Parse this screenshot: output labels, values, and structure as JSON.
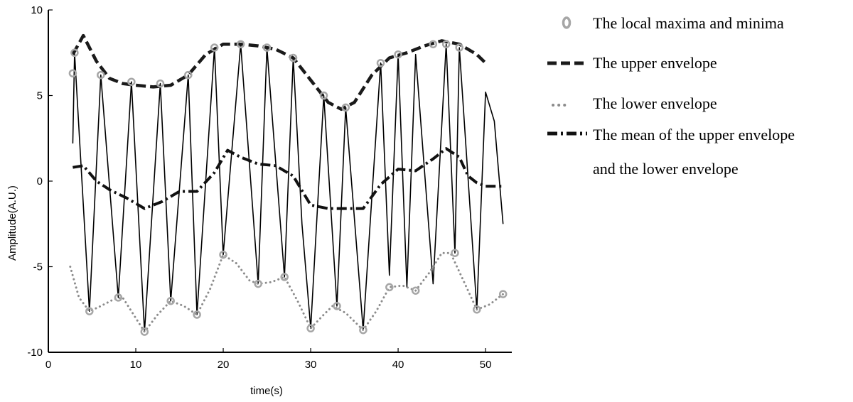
{
  "chart_data": {
    "type": "line",
    "title": "",
    "xlabel": "time(s)",
    "ylabel": "Amplitude(A.U.)",
    "xlim": [
      0,
      53
    ],
    "ylim": [
      -10,
      10
    ],
    "xticks": [
      "0",
      "10",
      "20",
      "30",
      "40",
      "50"
    ],
    "yticks": [
      "10",
      "5",
      "0",
      "-5",
      "-10"
    ],
    "grid": false,
    "legend_position": "right",
    "legend": [
      {
        "key": "extrema",
        "label": "The local maxima and minima"
      },
      {
        "key": "upper",
        "label": "The upper envelope"
      },
      {
        "key": "lower",
        "label": "The lower envelope"
      },
      {
        "key": "mean",
        "label": "The mean of the upper envelope",
        "label2": "and the lower envelope"
      }
    ],
    "series": [
      {
        "key": "signal",
        "style": "solid",
        "x": [
          2.8,
          3.0,
          4.7,
          6.0,
          8.0,
          9.5,
          11.0,
          12.8,
          14.0,
          16.0,
          17.0,
          19.0,
          20.0,
          22.0,
          24.0,
          25.0,
          27.0,
          28.0,
          29.0,
          30.0,
          31.5,
          33.0,
          34.0,
          36.0,
          38.0,
          39.0,
          40.0,
          41.0,
          42.0,
          44.0,
          45.5,
          46.5,
          47.0,
          49.0,
          50.0,
          51.0,
          52.0
        ],
        "y": [
          2.2,
          7.5,
          -7.6,
          6.2,
          -6.8,
          5.8,
          -8.8,
          5.7,
          -7.0,
          6.2,
          -7.8,
          7.8,
          -4.3,
          8.0,
          -6.0,
          7.8,
          -5.6,
          7.2,
          -2.5,
          -8.6,
          5.0,
          -7.3,
          4.3,
          -8.7,
          6.9,
          -5.5,
          7.4,
          -6.2,
          7.4,
          -6.0,
          8.0,
          -4.2,
          7.8,
          -7.5,
          5.2,
          3.5,
          -2.5
        ]
      },
      {
        "key": "upper",
        "style": "dashed",
        "x": [
          2.8,
          4.0,
          5.5,
          7.0,
          8.5,
          10.0,
          12.0,
          14.0,
          16.0,
          18.0,
          20.0,
          22.0,
          24.0,
          26.0,
          28.0,
          30.0,
          32.0,
          33.5,
          35.0,
          37.0,
          39.0,
          41.0,
          43.0,
          45.0,
          47.0,
          49.0,
          50.0
        ],
        "y": [
          7.4,
          8.5,
          7.0,
          6.0,
          5.7,
          5.6,
          5.5,
          5.6,
          6.2,
          7.4,
          8.0,
          8.0,
          7.9,
          7.7,
          7.2,
          5.9,
          4.6,
          4.2,
          4.6,
          6.2,
          7.2,
          7.5,
          7.9,
          8.2,
          8.0,
          7.4,
          6.9
        ]
      },
      {
        "key": "lower",
        "style": "dotted",
        "x": [
          2.5,
          3.5,
          4.7,
          6.0,
          7.5,
          8.5,
          10.0,
          11.0,
          12.5,
          14.0,
          15.5,
          17.0,
          18.5,
          20.0,
          21.5,
          23.0,
          24.0,
          25.5,
          27.0,
          28.5,
          30.0,
          31.5,
          32.5,
          34.0,
          36.0,
          37.5,
          39.0,
          40.5,
          42.0,
          43.5,
          45.0,
          46.0,
          47.0,
          49.0,
          50.5,
          52.0
        ],
        "y": [
          -5.0,
          -6.8,
          -7.6,
          -7.3,
          -6.9,
          -6.8,
          -8.0,
          -8.8,
          -7.8,
          -7.0,
          -7.3,
          -7.8,
          -6.3,
          -4.3,
          -4.8,
          -5.8,
          -6.0,
          -5.9,
          -5.6,
          -7.0,
          -8.6,
          -7.8,
          -7.3,
          -7.7,
          -8.7,
          -7.6,
          -6.2,
          -6.1,
          -6.4,
          -5.4,
          -4.2,
          -4.2,
          -5.3,
          -7.5,
          -7.2,
          -6.6
        ]
      },
      {
        "key": "mean",
        "style": "dashdot",
        "x": [
          2.8,
          4.0,
          5.5,
          7.0,
          9.0,
          11.0,
          13.0,
          15.0,
          17.0,
          19.0,
          20.5,
          22.0,
          24.0,
          26.0,
          28.0,
          30.0,
          32.0,
          34.0,
          36.0,
          38.0,
          40.0,
          42.0,
          44.0,
          45.5,
          47.0,
          48.0,
          49.0,
          50.0,
          52.0
        ],
        "y": [
          0.8,
          0.9,
          0.0,
          -0.5,
          -1.0,
          -1.6,
          -1.2,
          -0.6,
          -0.6,
          0.5,
          1.8,
          1.4,
          1.0,
          0.9,
          0.3,
          -1.4,
          -1.6,
          -1.6,
          -1.6,
          -0.2,
          0.7,
          0.6,
          1.3,
          1.9,
          1.4,
          0.3,
          -0.1,
          -0.3,
          -0.3
        ]
      }
    ],
    "extrema": {
      "x": [
        2.8,
        3.0,
        4.7,
        6.0,
        8.0,
        9.5,
        11.0,
        12.8,
        14.0,
        16.0,
        17.0,
        19.0,
        20.0,
        22.0,
        24.0,
        25.0,
        27.0,
        28.0,
        30.0,
        31.5,
        33.0,
        34.0,
        36.0,
        38.0,
        39.0,
        40.0,
        42.0,
        44.0,
        45.5,
        46.5,
        47.0,
        49.0,
        52.0
      ],
      "y": [
        6.3,
        7.5,
        -7.6,
        6.2,
        -6.8,
        5.8,
        -8.8,
        5.7,
        -7.0,
        6.2,
        -7.8,
        7.8,
        -4.3,
        8.0,
        -6.0,
        7.8,
        -5.6,
        7.2,
        -8.6,
        5.0,
        -7.3,
        4.3,
        -8.7,
        6.9,
        -6.2,
        7.4,
        -6.4,
        8.0,
        8.0,
        -4.2,
        7.8,
        -7.5,
        -6.6
      ]
    },
    "colors": {
      "signal": "#000000",
      "upper": "#1a1a1a",
      "lower": "#8c8c8c",
      "mean": "#111111",
      "marker": "#a6a6a6"
    }
  }
}
